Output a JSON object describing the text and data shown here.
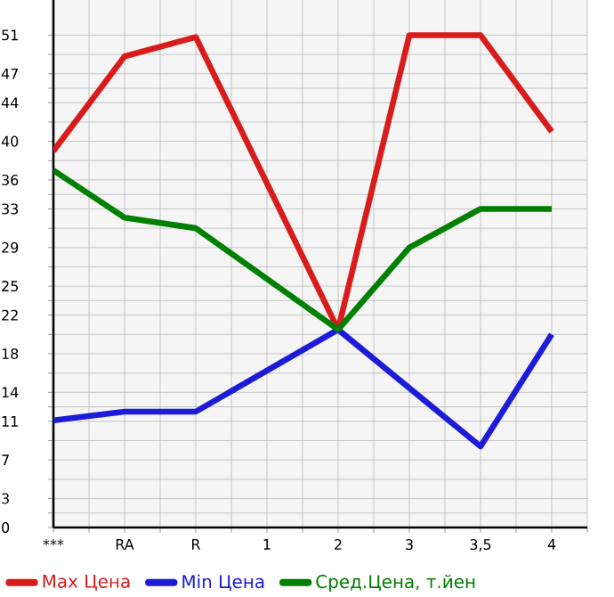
{
  "chart_data": {
    "type": "line",
    "categories": [
      "***",
      "RA",
      "R",
      "1",
      "2",
      "3",
      "3,5",
      "4"
    ],
    "series": [
      {
        "name": "Max Цена",
        "color": "#d81c1c",
        "values": [
          39.0,
          48.8,
          50.8,
          null,
          20.5,
          51.0,
          51.0,
          41.0
        ]
      },
      {
        "name": "Min Цена",
        "color": "#1c1cd8",
        "values": [
          11.1,
          12.0,
          12.0,
          null,
          20.5,
          null,
          8.4,
          20.0
        ]
      },
      {
        "name": "Сред.Цена, т.йен",
        "color": "#008000",
        "values": [
          37.0,
          32.1,
          31.0,
          null,
          20.5,
          29.0,
          33.0,
          33.0
        ]
      }
    ],
    "ylim": [
      0,
      54.64
    ],
    "yticks": [
      0,
      3,
      7,
      11,
      14,
      18,
      22,
      25,
      29,
      33,
      36,
      40,
      44,
      47,
      51
    ],
    "grid": true,
    "legend": "bottom",
    "marker": "none",
    "line_style": "solid"
  }
}
